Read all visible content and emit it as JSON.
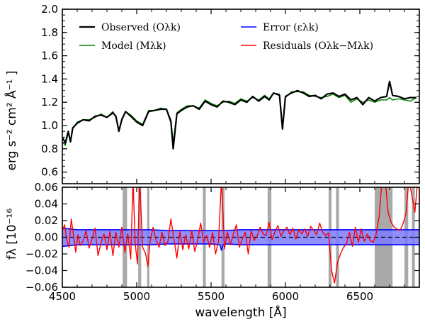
{
  "chart_data": [
    {
      "panel": "top",
      "type": "line",
      "xlim": [
        4500,
        6900
      ],
      "ylim": [
        0.5,
        2.0
      ],
      "yticks": [
        0.6,
        0.8,
        1.0,
        1.2,
        1.4,
        1.6,
        1.8,
        2.0
      ],
      "ytick_labels": [
        "0.6",
        "0.8",
        "1.0",
        "1.2",
        "1.4",
        "1.6",
        "1.8",
        "2.0"
      ],
      "ylabel": "erg s⁻² cm² Å⁻¹ ]",
      "legend": {
        "observed": "Observed (Oλk)",
        "model": "Model (Mλk)",
        "error": "Error (ελk)",
        "residuals": "Residuals (Oλk−Mλk)"
      },
      "colors": {
        "observed": "#000000",
        "model": "#008000",
        "error": "#0000ff",
        "residuals": "#ff0000"
      },
      "series": [
        {
          "name": "Observed",
          "color": "#000000",
          "x": [
            4500,
            4520,
            4540,
            4555,
            4570,
            4600,
            4640,
            4680,
            4720,
            4760,
            4800,
            4840,
            4860,
            4880,
            4900,
            4925,
            4960,
            5000,
            5040,
            5080,
            5120,
            5160,
            5200,
            5230,
            5245,
            5270,
            5300,
            5340,
            5380,
            5420,
            5460,
            5500,
            5540,
            5580,
            5620,
            5660,
            5700,
            5740,
            5780,
            5820,
            5860,
            5890,
            5920,
            5960,
            5980,
            6000,
            6040,
            6080,
            6120,
            6160,
            6200,
            6240,
            6280,
            6320,
            6360,
            6400,
            6440,
            6480,
            6520,
            6560,
            6600,
            6640,
            6680,
            6700,
            6720,
            6760,
            6800,
            6840,
            6880
          ],
          "y": [
            0.9,
            0.85,
            0.95,
            0.86,
            0.98,
            1.02,
            1.05,
            1.04,
            1.08,
            1.09,
            1.07,
            1.11,
            1.08,
            0.95,
            1.05,
            1.12,
            1.08,
            1.03,
            1.0,
            1.12,
            1.13,
            1.14,
            1.14,
            1.03,
            0.8,
            1.1,
            1.13,
            1.16,
            1.17,
            1.14,
            1.21,
            1.18,
            1.16,
            1.21,
            1.2,
            1.18,
            1.22,
            1.2,
            1.25,
            1.21,
            1.25,
            1.22,
            1.28,
            1.26,
            0.97,
            1.25,
            1.28,
            1.3,
            1.28,
            1.25,
            1.26,
            1.23,
            1.27,
            1.28,
            1.25,
            1.27,
            1.22,
            1.24,
            1.18,
            1.24,
            1.21,
            1.24,
            1.25,
            1.38,
            1.26,
            1.25,
            1.23,
            1.24,
            1.24
          ]
        },
        {
          "name": "Model",
          "color": "#008000",
          "x": [
            4500,
            4520,
            4540,
            4555,
            4570,
            4600,
            4640,
            4680,
            4720,
            4760,
            4800,
            4840,
            4860,
            4880,
            4900,
            4925,
            4960,
            5000,
            5040,
            5080,
            5120,
            5160,
            5200,
            5230,
            5245,
            5270,
            5300,
            5340,
            5380,
            5420,
            5460,
            5500,
            5540,
            5580,
            5620,
            5660,
            5700,
            5740,
            5780,
            5820,
            5860,
            5890,
            5920,
            5960,
            5980,
            6000,
            6040,
            6080,
            6120,
            6160,
            6200,
            6240,
            6280,
            6320,
            6360,
            6400,
            6440,
            6480,
            6520,
            6560,
            6600,
            6640,
            6680,
            6700,
            6720,
            6760,
            6800,
            6840,
            6880
          ],
          "y": [
            0.86,
            0.83,
            0.94,
            0.86,
            0.97,
            1.03,
            1.05,
            1.05,
            1.07,
            1.1,
            1.07,
            1.12,
            1.07,
            0.96,
            1.06,
            1.12,
            1.09,
            1.04,
            1.01,
            1.13,
            1.13,
            1.15,
            1.14,
            1.05,
            0.85,
            1.11,
            1.14,
            1.17,
            1.17,
            1.15,
            1.22,
            1.19,
            1.17,
            1.2,
            1.21,
            1.19,
            1.23,
            1.21,
            1.24,
            1.22,
            1.26,
            1.23,
            1.28,
            1.27,
            1.0,
            1.24,
            1.29,
            1.29,
            1.29,
            1.26,
            1.25,
            1.24,
            1.25,
            1.27,
            1.24,
            1.26,
            1.2,
            1.23,
            1.2,
            1.22,
            1.2,
            1.22,
            1.22,
            1.24,
            1.22,
            1.23,
            1.22,
            1.21,
            1.24
          ]
        }
      ]
    },
    {
      "panel": "bottom",
      "type": "line",
      "xlim": [
        4500,
        6900
      ],
      "ylim": [
        -0.06,
        0.06
      ],
      "yticks": [
        -0.06,
        -0.04,
        -0.02,
        0.0,
        0.02,
        0.04,
        0.06
      ],
      "ytick_labels": [
        "−0.06",
        "−0.04",
        "−0.02",
        "0.00",
        "0.02",
        "0.04",
        "0.06"
      ],
      "xticks": [
        4500,
        5000,
        5500,
        6000,
        6500
      ],
      "xtick_labels": [
        "4500",
        "5000",
        "5500",
        "6000",
        "6500"
      ],
      "xlabel": "wavelength [Å]",
      "ylabel": "fλ [10⁻¹⁶",
      "masked_regions": [
        [
          4905,
          4935
        ],
        [
          5010,
          5030
        ],
        [
          5070,
          5085
        ],
        [
          5445,
          5465
        ],
        [
          5570,
          5590
        ],
        [
          5880,
          5905
        ],
        [
          6290,
          6310
        ],
        [
          6340,
          6360
        ],
        [
          6600,
          6720
        ],
        [
          6800,
          6825
        ],
        [
          6850,
          6870
        ]
      ],
      "error_band": {
        "color": "#0000ff",
        "x": [
          4500,
          4550,
          4600,
          4700,
          4800,
          4900,
          5000,
          5100,
          5200,
          5300,
          5400,
          5500,
          5560,
          5570,
          5580,
          5600,
          5700,
          5800,
          5900,
          6000,
          6100,
          6200,
          6300,
          6400,
          6500,
          6600,
          6700,
          6800,
          6900
        ],
        "upper": [
          0.011,
          0.01,
          0.009,
          0.009,
          0.009,
          0.009,
          0.009,
          0.009,
          0.008,
          0.008,
          0.008,
          0.008,
          0.008,
          0.008,
          0.008,
          0.008,
          0.009,
          0.009,
          0.009,
          0.009,
          0.009,
          0.009,
          0.009,
          0.009,
          0.009,
          0.009,
          0.009,
          0.009,
          0.009
        ],
        "lower": [
          -0.011,
          -0.01,
          -0.009,
          -0.009,
          -0.009,
          -0.009,
          -0.009,
          -0.009,
          -0.008,
          -0.008,
          -0.008,
          -0.008,
          -0.009,
          -0.016,
          -0.009,
          -0.008,
          -0.009,
          -0.009,
          -0.009,
          -0.009,
          -0.009,
          -0.009,
          -0.009,
          -0.009,
          -0.009,
          -0.009,
          -0.009,
          -0.009,
          -0.009
        ]
      },
      "residuals": {
        "color": "#ff0000",
        "x": [
          4500,
          4515,
          4530,
          4545,
          4560,
          4575,
          4590,
          4605,
          4620,
          4640,
          4660,
          4680,
          4700,
          4720,
          4740,
          4760,
          4780,
          4800,
          4820,
          4840,
          4860,
          4880,
          4900,
          4920,
          4940,
          4960,
          4975,
          4990,
          5005,
          5020,
          5040,
          5060,
          5075,
          5090,
          5110,
          5130,
          5150,
          5170,
          5190,
          5210,
          5230,
          5250,
          5270,
          5290,
          5310,
          5330,
          5350,
          5370,
          5390,
          5410,
          5430,
          5450,
          5470,
          5490,
          5510,
          5530,
          5550,
          5570,
          5590,
          5610,
          5630,
          5650,
          5670,
          5690,
          5710,
          5730,
          5750,
          5770,
          5790,
          5810,
          5830,
          5850,
          5870,
          5890,
          5910,
          5930,
          5950,
          5970,
          5990,
          6010,
          6030,
          6050,
          6070,
          6090,
          6110,
          6130,
          6150,
          6170,
          6190,
          6210,
          6230,
          6250,
          6270,
          6290,
          6310,
          6330,
          6350,
          6370,
          6390,
          6410,
          6430,
          6450,
          6470,
          6490,
          6510,
          6530,
          6550,
          6570,
          6590,
          6610,
          6630,
          6650,
          6670,
          6690,
          6710,
          6730,
          6750,
          6770,
          6790,
          6810,
          6830,
          6850,
          6870,
          6890
        ],
        "y": [
          0.008,
          0.015,
          -0.004,
          -0.012,
          0.022,
          0.002,
          -0.018,
          0.003,
          -0.01,
          -0.004,
          0.008,
          -0.013,
          -0.002,
          0.011,
          -0.022,
          -0.007,
          0.004,
          -0.015,
          0.007,
          -0.022,
          0.006,
          -0.012,
          0.012,
          -0.018,
          0.004,
          -0.026,
          0.07,
          -0.008,
          -0.032,
          0.07,
          -0.012,
          -0.02,
          -0.035,
          -0.005,
          0.012,
          -0.003,
          -0.012,
          0.006,
          -0.01,
          -0.005,
          0.022,
          -0.002,
          -0.025,
          0.007,
          -0.015,
          0.003,
          -0.014,
          0.008,
          -0.017,
          -0.004,
          0.017,
          -0.006,
          0.002,
          -0.012,
          0.006,
          -0.02,
          -0.005,
          0.07,
          -0.014,
          0.006,
          -0.009,
          0.004,
          0.015,
          -0.012,
          -0.002,
          0.006,
          -0.02,
          0.008,
          -0.004,
          0.002,
          0.012,
          0.004,
          0.002,
          0.018,
          -0.003,
          0.007,
          0.014,
          0.001,
          0.008,
          0.012,
          0.003,
          0.011,
          -0.002,
          0.009,
          0.004,
          0.01,
          0.001,
          0.013,
          0.008,
          0.003,
          0.017,
          0.006,
          0.002,
          0.005,
          -0.04,
          -0.055,
          -0.03,
          -0.02,
          -0.012,
          -0.008,
          0.006,
          -0.011,
          0.012,
          -0.006,
          0.01,
          -0.005,
          0.004,
          -0.004,
          -0.006,
          0.004,
          0.025,
          0.07,
          0.07,
          0.03,
          0.018,
          0.012,
          0.01,
          0.008,
          0.016,
          0.028,
          0.07,
          0.05,
          0.03,
          0.07
        ]
      }
    }
  ]
}
